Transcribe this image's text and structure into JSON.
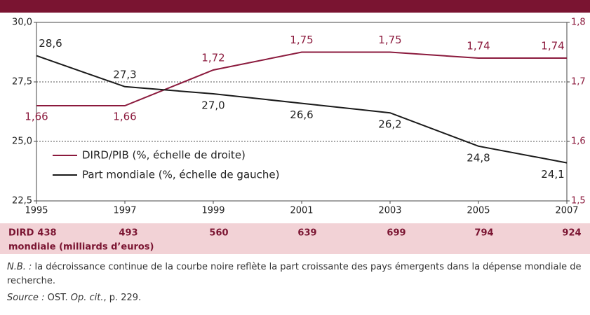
{
  "chart_data": {
    "type": "line",
    "x": [
      1995,
      1997,
      1999,
      2001,
      2003,
      2005,
      2007
    ],
    "xlim": [
      1995,
      2007
    ],
    "xticks": [
      1995,
      1997,
      1999,
      2001,
      2003,
      2005,
      2007
    ],
    "ylim": [
      22.5,
      30
    ],
    "yticks": [
      {
        "value": 22.5,
        "label": "22,5"
      },
      {
        "value": 25,
        "label": "25,0"
      },
      {
        "value": 27.5,
        "label": "27,5"
      },
      {
        "value": 30,
        "label": "30,0"
      }
    ],
    "y2lim": [
      1.5,
      1.8
    ],
    "y2ticks": [
      {
        "value": 1.5,
        "label": "1,5"
      },
      {
        "value": 1.6,
        "label": "1,6"
      },
      {
        "value": 1.7,
        "label": "1,7"
      },
      {
        "value": 1.8,
        "label": "1,8"
      }
    ],
    "grid": true,
    "legend": "lower left",
    "series": [
      {
        "name": "DIRD/PIB (%, échelle de droite)",
        "color": "#8b1a3d",
        "axis": "y2",
        "values": [
          1.66,
          1.66,
          1.72,
          1.75,
          1.75,
          1.74,
          1.74
        ],
        "value_labels": [
          "1,66",
          "1,66",
          "1,72",
          "1,75",
          "1,75",
          "1,74",
          "1,74"
        ]
      },
      {
        "name": "Part mondiale (%, échelle de gauche)",
        "color": "#1a1a1a",
        "values": [
          28.6,
          27.3,
          27.0,
          26.6,
          26.2,
          24.8,
          24.1
        ],
        "value_labels": [
          "28,6",
          "27,3",
          "27,0",
          "26,6",
          "26,2",
          "24,8",
          "24,1"
        ]
      }
    ]
  },
  "table": {
    "label": [
      "DIRD",
      "mondiale (milliards d’euros)"
    ],
    "values": [
      438,
      493,
      560,
      639,
      699,
      794,
      924
    ]
  },
  "note": {
    "prefix": "N.B. :",
    "text": " la décroissance continue de la courbe noire reflète la part croissante des pays émergents dans la dépense mondiale de recherche."
  },
  "source": {
    "prefix": "Source :",
    "text": " OST. ",
    "work": "Op. cit.",
    "page": ", p. 229."
  }
}
